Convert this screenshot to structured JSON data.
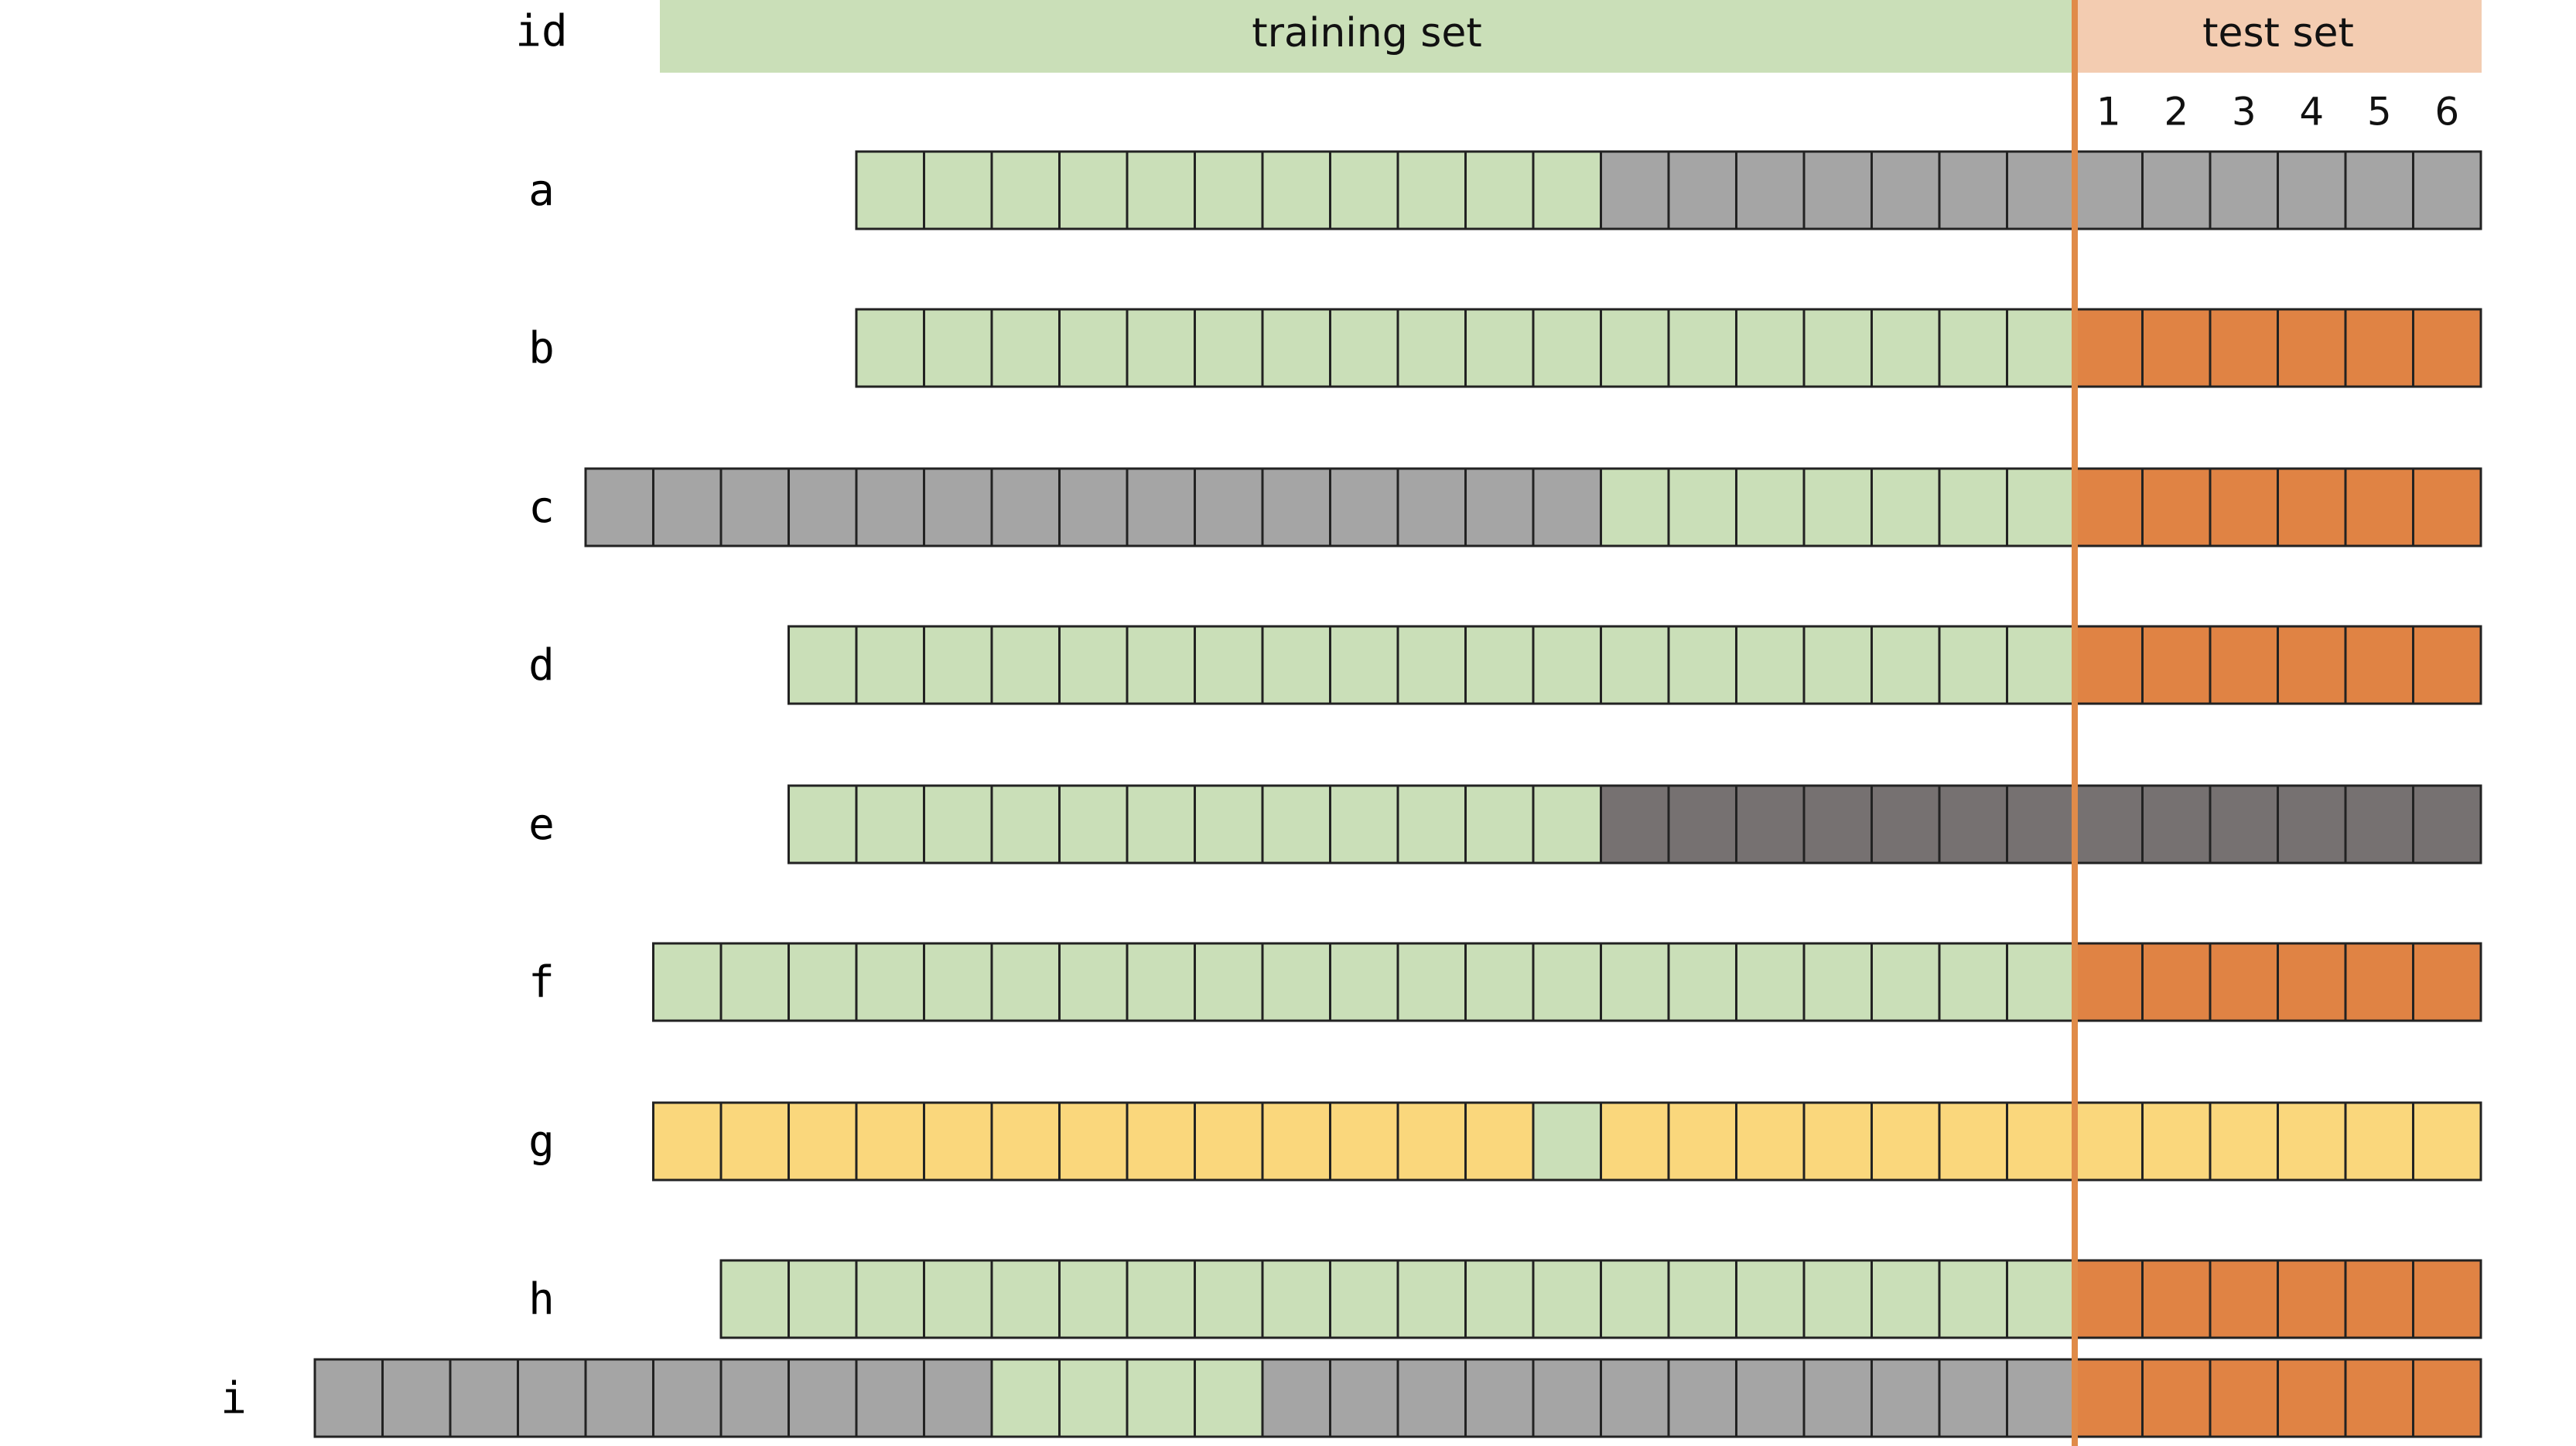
{
  "header": {
    "id_label": "id",
    "training_label": "training set",
    "test_label": "test set",
    "step_numbers": [
      "1",
      "2",
      "3",
      "4",
      "5",
      "6"
    ]
  },
  "colors": {
    "training_band": "#cadfb8",
    "test_band": "#f3ccb1",
    "split_line": "#e08b49",
    "cell_border": "#222222"
  },
  "legend_colors": {
    "G": "#cadfb8",
    "S": "#a5a5a5",
    "D": "#767171",
    "O": "#e08344",
    "Y": "#fad77c"
  },
  "series": [
    {
      "id": "a",
      "cells": "GGGGGGGGGGGSSSSSSSSSSSSS"
    },
    {
      "id": "b",
      "cells": "GGGGGGGGGGGGGGGGGGOOOOOO"
    },
    {
      "id": "c",
      "cells": "SSSSSSSSSSSSSSSGGGGGGGOOOOOO"
    },
    {
      "id": "d",
      "cells": "GGGGGGGGGGGGGGGGGGGOOOOOO"
    },
    {
      "id": "e",
      "cells": "GGGGGGGGGGGGDDDDDDDDDDDDD"
    },
    {
      "id": "f",
      "cells": "GGGGGGGGGGGGGGGGGGGGGOOOOOO"
    },
    {
      "id": "g",
      "cells": "YYYYYYYYYYYYYGYYYYYYYYYYYYY"
    },
    {
      "id": "h",
      "cells": "GGGGGGGGGGGGGGGGGGGGOOOOOO"
    },
    {
      "id": "i",
      "cells": "SSSSSSSSSSGGGGSSSSSSSSSSSSOOOOOO"
    }
  ]
}
